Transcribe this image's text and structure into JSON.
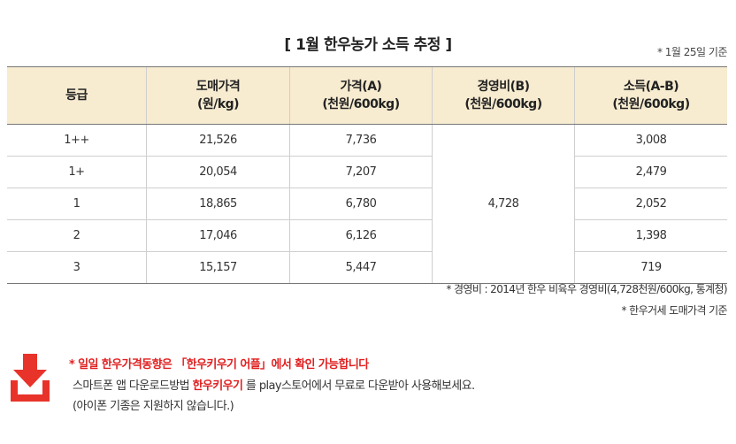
{
  "title": "[ 1월 한우농가 소득 추정 ]",
  "basis_note": "* 1월 25일 기준",
  "table": {
    "headers": [
      {
        "line1": "등급",
        "line2": ""
      },
      {
        "line1": "도매가격",
        "line2": "(원/kg)"
      },
      {
        "line1": "가격(A)",
        "line2": "(천원/600kg)"
      },
      {
        "line1": "경영비(B)",
        "line2": "(천원/600kg)"
      },
      {
        "line1": "소득(A-B)",
        "line2": "(천원/600kg)"
      }
    ],
    "rows": [
      {
        "grade": "1++",
        "wholesale": "21,526",
        "price": "7,736",
        "income": "3,008"
      },
      {
        "grade": "1+",
        "wholesale": "20,054",
        "price": "7,207",
        "income": "2,479"
      },
      {
        "grade": "1",
        "wholesale": "18,865",
        "price": "6,780",
        "income": "2,052"
      },
      {
        "grade": "2",
        "wholesale": "17,046",
        "price": "6,126",
        "income": "1,398"
      },
      {
        "grade": "3",
        "wholesale": "15,157",
        "price": "5,447",
        "income": "719"
      }
    ],
    "cost": "4,728"
  },
  "notes": {
    "cost_source": "* 경영비 : 2014년 한우 비육우 경영비(4,728천원/600kg, 통계청)",
    "price_source": "* 한우거세 도매가격 기준"
  },
  "promo": {
    "line1": "* 일일 한우가격동향은 「한우키우기 어플」에서 확인 가능합니다",
    "line2_pre": "스마트폰 앱 다운로드방법 ",
    "line2_app": "한우키우기",
    "line2_post": " 를 play스토어에서 무료로 다운받아 사용해보세요.",
    "line3": "(아이폰 기종은 지원하지 않습니다.)"
  },
  "colors": {
    "header_bg": "#f7ebd0",
    "accent_red": "#e02020",
    "icon_red": "#e8332a"
  },
  "icons": {
    "download": "download-icon"
  }
}
